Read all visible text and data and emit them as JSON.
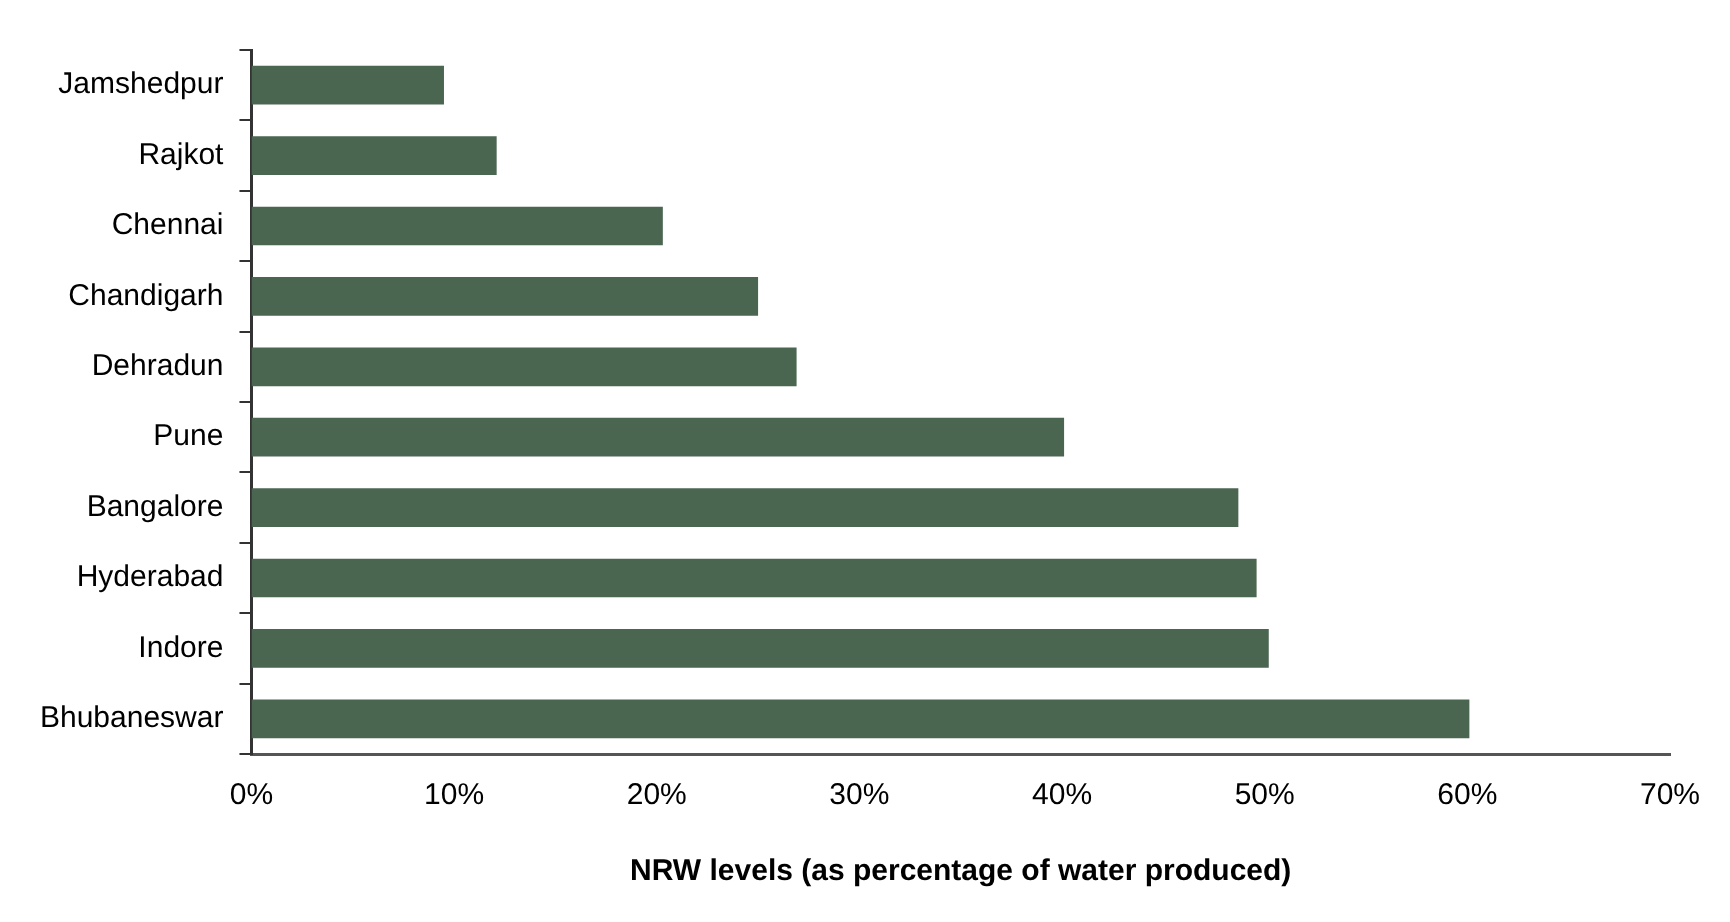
{
  "chart_data": {
    "type": "bar",
    "orientation": "horizontal",
    "xlabel": "NRW levels (as percentage of water produced)",
    "categories": [
      "Jamshedpur",
      "Rajkot",
      "Chennai",
      "Chandigarh",
      "Dehradun",
      "Pune",
      "Bangalore",
      "Hyderabad",
      "Indore",
      "Bhubaneswar"
    ],
    "values": [
      9.5,
      12.1,
      20.3,
      25.0,
      26.9,
      40.1,
      48.7,
      49.6,
      50.2,
      60.1
    ],
    "color": "#4a6650",
    "xlim": [
      0,
      70
    ],
    "xticks": [
      {
        "value": 0,
        "label": "0%"
      },
      {
        "value": 10,
        "label": "10%"
      },
      {
        "value": 20,
        "label": "20%"
      },
      {
        "value": 30,
        "label": "30%"
      },
      {
        "value": 40,
        "label": "40%"
      },
      {
        "value": 50,
        "label": "50%"
      },
      {
        "value": 60,
        "label": "60%"
      },
      {
        "value": 70,
        "label": "70%"
      }
    ],
    "grid": false,
    "legend": false
  }
}
